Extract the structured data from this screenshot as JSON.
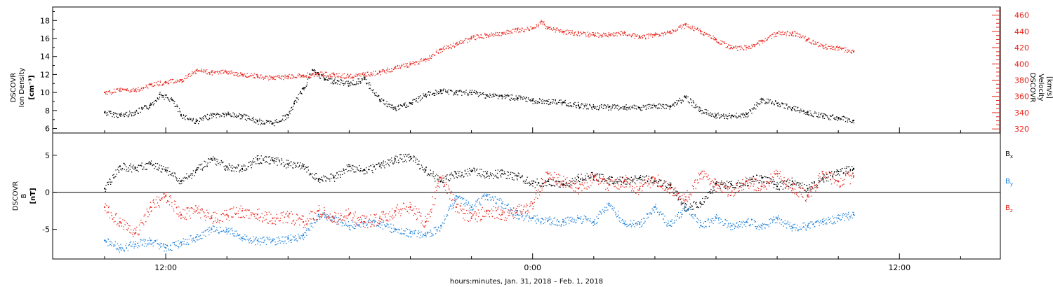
{
  "chart_data": [
    {
      "type": "scatter",
      "panel": "top",
      "ylabel_left": [
        "DSCOVR",
        "Ion Density",
        "[cm⁻³]"
      ],
      "ylabel_right": [
        "DSCOVR",
        "Velocity",
        "[km/s]"
      ],
      "ylim_left": [
        5.5,
        19.5
      ],
      "ylim_right": [
        315,
        470
      ],
      "yticks_left": [
        "6",
        "8",
        "10",
        "12",
        "14",
        "16",
        "18"
      ],
      "yticks_right": [
        "320",
        "340",
        "360",
        "380",
        "400",
        "420",
        "440",
        "460"
      ],
      "series": [
        {
          "axis": "left",
          "color": "#000000",
          "points": [
            [
              -14,
              7.8
            ],
            [
              -13.5,
              7.5
            ],
            [
              -13,
              7.8
            ],
            [
              -12.5,
              8.6
            ],
            [
              -12.2,
              9.8
            ],
            [
              -11.8,
              9.2
            ],
            [
              -11.5,
              7.5
            ],
            [
              -11,
              6.8
            ],
            [
              -10.5,
              7.5
            ],
            [
              -10,
              7.6
            ],
            [
              -9.5,
              7.4
            ],
            [
              -9,
              6.8
            ],
            [
              -8.5,
              6.6
            ],
            [
              -8,
              7.5
            ],
            [
              -7.8,
              8.8
            ],
            [
              -7.5,
              10.5
            ],
            [
              -7.2,
              12.5
            ],
            [
              -7,
              12.0
            ],
            [
              -6.8,
              11.5
            ],
            [
              -6.5,
              11.3
            ],
            [
              -6,
              11.0
            ],
            [
              -5.5,
              11.5
            ],
            [
              -5,
              9.2
            ],
            [
              -4.5,
              8.2
            ],
            [
              -4.2,
              8.6
            ],
            [
              -4,
              8.8
            ],
            [
              -3.5,
              9.8
            ],
            [
              -3,
              10.2
            ],
            [
              -2.5,
              10.0
            ],
            [
              -2,
              10.0
            ],
            [
              -1.5,
              9.7
            ],
            [
              -1,
              9.6
            ],
            [
              -0.5,
              9.4
            ],
            [
              0,
              9.1
            ],
            [
              0.5,
              9.0
            ],
            [
              1,
              8.9
            ],
            [
              1.5,
              8.6
            ],
            [
              2,
              8.4
            ],
            [
              2.5,
              8.4
            ],
            [
              3,
              8.4
            ],
            [
              3.5,
              8.3
            ],
            [
              4,
              8.5
            ],
            [
              4.5,
              8.5
            ],
            [
              5,
              9.5
            ],
            [
              5.5,
              8.0
            ],
            [
              6,
              7.5
            ],
            [
              6.5,
              7.4
            ],
            [
              7,
              7.6
            ],
            [
              7.5,
              9.2
            ],
            [
              8,
              8.8
            ],
            [
              8.5,
              8.3
            ],
            [
              9,
              7.8
            ],
            [
              9.5,
              7.4
            ],
            [
              10,
              7.2
            ],
            [
              10.5,
              6.9
            ]
          ]
        },
        {
          "axis": "right",
          "color": "#e8221a",
          "points": [
            [
              -14,
              365
            ],
            [
              -13.5,
              368
            ],
            [
              -13,
              368
            ],
            [
              -12.5,
              375
            ],
            [
              -12,
              378
            ],
            [
              -11.5,
              380
            ],
            [
              -11,
              392
            ],
            [
              -10.5,
              390
            ],
            [
              -10,
              390
            ],
            [
              -9.5,
              387
            ],
            [
              -9,
              385
            ],
            [
              -8.5,
              383
            ],
            [
              -8,
              385
            ],
            [
              -7.5,
              386
            ],
            [
              -7,
              388
            ],
            [
              -6.5,
              387
            ],
            [
              -6,
              385
            ],
            [
              -5.5,
              387
            ],
            [
              -5,
              390
            ],
            [
              -4.5,
              395
            ],
            [
              -4,
              400
            ],
            [
              -3.5,
              406
            ],
            [
              -3,
              418
            ],
            [
              -2.5,
              425
            ],
            [
              -2,
              432
            ],
            [
              -1.5,
              436
            ],
            [
              -1,
              438
            ],
            [
              -0.5,
              442
            ],
            [
              0,
              444
            ],
            [
              0.3,
              452
            ],
            [
              0.5,
              444
            ],
            [
              1,
              440
            ],
            [
              1.5,
              438
            ],
            [
              2,
              436
            ],
            [
              2.5,
              436
            ],
            [
              3,
              438
            ],
            [
              3.5,
              433
            ],
            [
              4,
              436
            ],
            [
              4.5,
              440
            ],
            [
              5,
              448
            ],
            [
              5.5,
              440
            ],
            [
              6,
              430
            ],
            [
              6.5,
              420
            ],
            [
              7,
              420
            ],
            [
              7.5,
              428
            ],
            [
              8,
              438
            ],
            [
              8.5,
              438
            ],
            [
              9,
              430
            ],
            [
              9.5,
              422
            ],
            [
              10,
              420
            ],
            [
              10.5,
              415
            ]
          ]
        }
      ]
    },
    {
      "type": "scatter",
      "panel": "bottom",
      "ylabel_left": [
        "DSCOVR",
        "B",
        "[nT]"
      ],
      "ylim": [
        -9,
        8
      ],
      "yticks": [
        "-5",
        "0",
        "5"
      ],
      "zero_line": true,
      "series": [
        {
          "name": "B",
          "subscript": "x",
          "color": "#000000",
          "points": [
            [
              -14,
              0.5
            ],
            [
              -13.5,
              3.5
            ],
            [
              -13,
              3.3
            ],
            [
              -12.5,
              3.8
            ],
            [
              -12,
              3.0
            ],
            [
              -11.5,
              1.5
            ],
            [
              -11,
              3.0
            ],
            [
              -10.5,
              4.5
            ],
            [
              -10,
              3.5
            ],
            [
              -9.5,
              3.2
            ],
            [
              -9,
              4.5
            ],
            [
              -8.5,
              4.3
            ],
            [
              -8,
              3.8
            ],
            [
              -7.5,
              3.5
            ],
            [
              -7,
              1.8
            ],
            [
              -6.5,
              2.0
            ],
            [
              -6,
              3.5
            ],
            [
              -5.5,
              3.0
            ],
            [
              -5,
              3.5
            ],
            [
              -4.5,
              4.5
            ],
            [
              -4,
              4.8
            ],
            [
              -3.5,
              3.0
            ],
            [
              -3,
              1.5
            ],
            [
              -2.5,
              2.5
            ],
            [
              -2,
              2.8
            ],
            [
              -1.5,
              2.5
            ],
            [
              -1,
              2.5
            ],
            [
              -0.5,
              2.2
            ],
            [
              0,
              1.2
            ],
            [
              0.5,
              1.5
            ],
            [
              1,
              1.0
            ],
            [
              1.5,
              2.0
            ],
            [
              2,
              2.2
            ],
            [
              2.5,
              1.8
            ],
            [
              3,
              1.5
            ],
            [
              3.5,
              2.0
            ],
            [
              4,
              1.5
            ],
            [
              4.5,
              1.0
            ],
            [
              5,
              -2.0
            ],
            [
              5.5,
              -1.5
            ],
            [
              6,
              1.2
            ],
            [
              6.5,
              1.0
            ],
            [
              7,
              1.5
            ],
            [
              7.5,
              2.0
            ],
            [
              8,
              0.8
            ],
            [
              8.5,
              1.5
            ],
            [
              9,
              0.5
            ],
            [
              9.5,
              1.8
            ],
            [
              10,
              2.8
            ],
            [
              10.5,
              3.2
            ]
          ]
        },
        {
          "name": "B",
          "subscript": "y",
          "color": "#1a7fd8",
          "points": [
            [
              -14,
              -6.5
            ],
            [
              -13.5,
              -7.5
            ],
            [
              -13,
              -7.0
            ],
            [
              -12.5,
              -6.5
            ],
            [
              -12,
              -7.5
            ],
            [
              -11.5,
              -6.8
            ],
            [
              -11,
              -6.0
            ],
            [
              -10.5,
              -5.0
            ],
            [
              -10,
              -5.0
            ],
            [
              -9.5,
              -6.2
            ],
            [
              -9,
              -6.5
            ],
            [
              -8.5,
              -6.5
            ],
            [
              -8,
              -6.3
            ],
            [
              -7.5,
              -5.8
            ],
            [
              -7,
              -3.0
            ],
            [
              -6.5,
              -3.5
            ],
            [
              -6,
              -4.5
            ],
            [
              -5.5,
              -4.0
            ],
            [
              -5,
              -4.2
            ],
            [
              -4.5,
              -5.0
            ],
            [
              -4,
              -5.5
            ],
            [
              -3.5,
              -5.8
            ],
            [
              -3,
              -4.5
            ],
            [
              -2.5,
              -0.5
            ],
            [
              -2,
              -2.0
            ],
            [
              -1.5,
              -0.5
            ],
            [
              -1,
              -1.5
            ],
            [
              -0.5,
              -3.0
            ],
            [
              0,
              -3.5
            ],
            [
              0.5,
              -3.8
            ],
            [
              1,
              -4.0
            ],
            [
              1.5,
              -3.5
            ],
            [
              2,
              -4.0
            ],
            [
              2.5,
              -1.5
            ],
            [
              3,
              -4.2
            ],
            [
              3.5,
              -4.3
            ],
            [
              4,
              -2.0
            ],
            [
              4.5,
              -4.5
            ],
            [
              5,
              -2.0
            ],
            [
              5.5,
              -4.5
            ],
            [
              6,
              -3.5
            ],
            [
              6.5,
              -4.5
            ],
            [
              7,
              -4.0
            ],
            [
              7.5,
              -4.5
            ],
            [
              8,
              -3.5
            ],
            [
              8.5,
              -4.8
            ],
            [
              9,
              -4.5
            ],
            [
              9.5,
              -4.0
            ],
            [
              10,
              -3.5
            ],
            [
              10.5,
              -3.0
            ]
          ]
        },
        {
          "name": "B",
          "subscript": "z",
          "color": "#e8221a",
          "points": [
            [
              -14,
              -2.0
            ],
            [
              -13.5,
              -4.0
            ],
            [
              -13,
              -5.5
            ],
            [
              -12.5,
              -2.0
            ],
            [
              -12,
              -0.5
            ],
            [
              -11.5,
              -3.0
            ],
            [
              -11,
              -2.5
            ],
            [
              -10.5,
              -3.5
            ],
            [
              -10,
              -3.0
            ],
            [
              -9.5,
              -2.5
            ],
            [
              -9,
              -3.0
            ],
            [
              -8.5,
              -3.5
            ],
            [
              -8,
              -3.2
            ],
            [
              -7.5,
              -4.0
            ],
            [
              -7,
              -2.5
            ],
            [
              -6.5,
              -3.5
            ],
            [
              -6,
              -3.0
            ],
            [
              -5.5,
              -4.0
            ],
            [
              -5,
              -3.5
            ],
            [
              -4.5,
              -2.5
            ],
            [
              -4,
              -2.0
            ],
            [
              -3.5,
              -4.0
            ],
            [
              -3,
              2.0
            ],
            [
              -2.5,
              -2.0
            ],
            [
              -2,
              -3.5
            ],
            [
              -1.5,
              -2.5
            ],
            [
              -1,
              -3.0
            ],
            [
              -0.5,
              -2.5
            ],
            [
              0,
              -1.5
            ],
            [
              0.5,
              2.5
            ],
            [
              1,
              1.5
            ],
            [
              1.5,
              0.5
            ],
            [
              2,
              2.0
            ],
            [
              2.5,
              1.0
            ],
            [
              3,
              1.5
            ],
            [
              3.5,
              0.5
            ],
            [
              4,
              1.8
            ],
            [
              4.5,
              0.5
            ],
            [
              5,
              -1.0
            ],
            [
              5.5,
              2.5
            ],
            [
              6,
              1.0
            ],
            [
              6.5,
              0.0
            ],
            [
              7,
              1.5
            ],
            [
              7.5,
              0.8
            ],
            [
              8,
              2.5
            ],
            [
              8.5,
              0.5
            ],
            [
              9,
              -0.5
            ],
            [
              9.5,
              2.5
            ],
            [
              10,
              1.5
            ],
            [
              10.5,
              2.2
            ]
          ]
        }
      ]
    }
  ],
  "x_axis": {
    "range_hours": [
      -15.7,
      15.3
    ],
    "major_tick_labels": [
      {
        "hour": -12,
        "label": "12:00"
      },
      {
        "hour": 0,
        "label": "0:00"
      },
      {
        "hour": 12,
        "label": "12:00"
      }
    ],
    "minor_tick_step_hours": 2,
    "xlabel": "hours:minutes, Jan. 31, 2018 – Feb.  1, 2018"
  },
  "colors": {
    "black": "#000000",
    "red": "#e8221a",
    "blue": "#1a7fd8"
  }
}
